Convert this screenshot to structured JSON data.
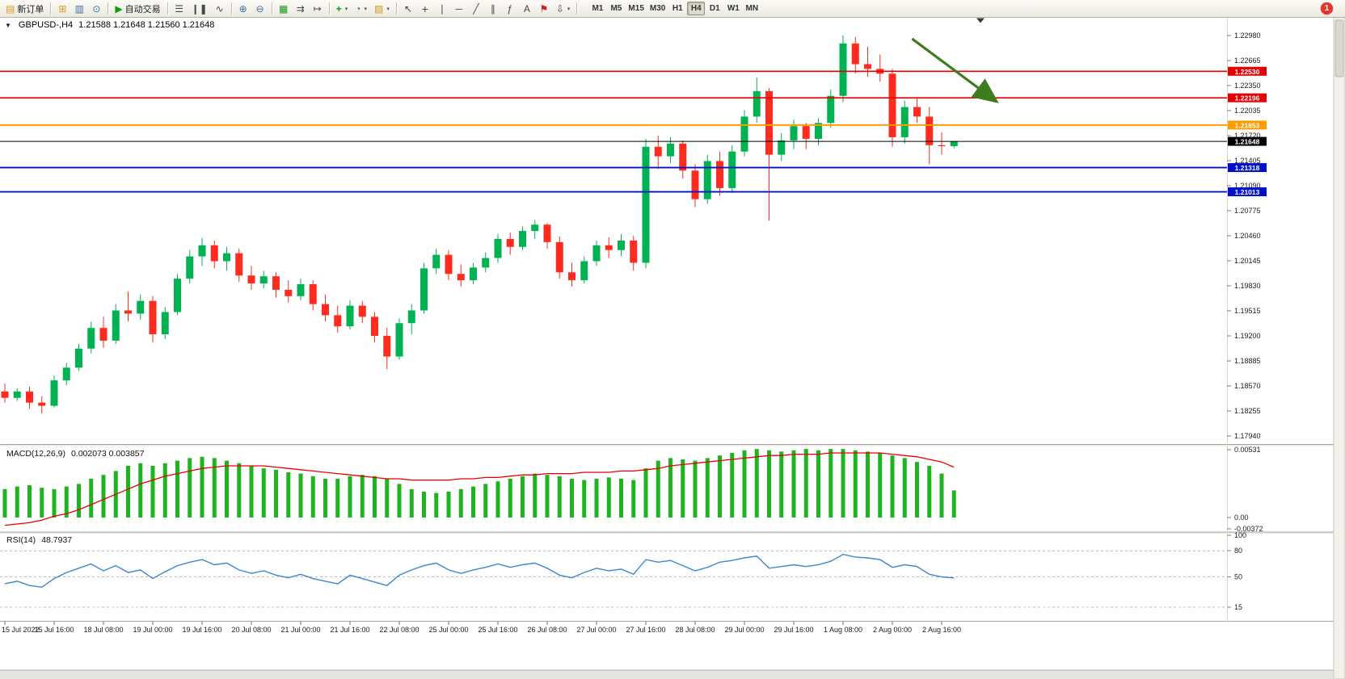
{
  "toolbar": {
    "new_order_label": "新订单",
    "autotrading_label": "自动交易",
    "timeframes": [
      "M1",
      "M5",
      "M15",
      "M30",
      "H1",
      "H4",
      "D1",
      "W1",
      "MN"
    ],
    "active_timeframe": "H4",
    "notification_badge": "1"
  },
  "icons": {
    "new_order": "▤",
    "new_chart": "⊞",
    "profiles": "▥",
    "market_watch": "⊙",
    "autotrading_play": "▶",
    "bars_mode": "☰",
    "candles_mode": "❙❚",
    "line_mode": "∿",
    "zoom_in": "⊕",
    "zoom_out": "⊖",
    "tile_windows": "▦",
    "auto_scroll": "⇉",
    "chart_shift": "↦",
    "indicators": "+",
    "periods": "◔",
    "templates": "▨",
    "cursor": "↖",
    "crosshair": "+",
    "vertical_line": "❘",
    "horizontal_line": "─",
    "trendline": "╱",
    "channel": "∥",
    "fibonacci": "ƒ",
    "text_tool": "A",
    "label_tool": "⚑",
    "arrows_tool": "⇩",
    "dropdown": "▾",
    "collapse": "▼"
  },
  "chart_data": [
    {
      "id": "price",
      "type": "candlestick",
      "title": "GBPUSD-,H4",
      "ohlc_text": "1.21588 1.21648 1.21560 1.21648",
      "up_color": "#00b251",
      "down_color": "#ff2b1e",
      "bid_price": "1.21648",
      "y_ticks": [
        "1.22980",
        "1.22665",
        "1.22350",
        "1.22035",
        "1.21720",
        "1.21405",
        "1.21090",
        "1.20775",
        "1.20460",
        "1.20145",
        "1.19830",
        "1.19515",
        "1.19200",
        "1.18885",
        "1.18570",
        "1.18255",
        "1.17940"
      ],
      "x_labels": [
        "15 Jul 2022",
        "15 Jul 16:00",
        "18 Jul 08:00",
        "19 Jul 00:00",
        "19 Jul 16:00",
        "20 Jul 08:00",
        "21 Jul 00:00",
        "21 Jul 16:00",
        "22 Jul 08:00",
        "25 Jul 00:00",
        "25 Jul 16:00",
        "26 Jul 08:00",
        "27 Jul 00:00",
        "27 Jul 16:00",
        "28 Jul 08:00",
        "29 Jul 00:00",
        "29 Jul 16:00",
        "1 Aug 08:00",
        "2 Aug 00:00",
        "2 Aug 16:00"
      ],
      "label_every": 4,
      "hlines": [
        {
          "price": "1.22530",
          "color": "#e60000",
          "width": 1.6
        },
        {
          "price": "1.22196",
          "color": "#e60000",
          "width": 1.6
        },
        {
          "price": "1.21853",
          "color": "#ff9d00",
          "width": 2
        },
        {
          "price": "1.21648",
          "color": "#000000",
          "width": 1
        },
        {
          "price": "1.21318",
          "color": "#0011cc",
          "width": 1.8
        },
        {
          "price": "1.21013",
          "color": "#0011cc",
          "width": 1.8
        }
      ],
      "arrow_annotation": {
        "start": {
          "bar": 73.6,
          "price": 1.22939
        },
        "end": {
          "bar": 80.3,
          "price": 1.22167
        },
        "color": "#3e7d1f"
      },
      "candles": [
        [
          1.185,
          1.186,
          1.1836,
          1.1842
        ],
        [
          1.1842,
          1.1854,
          1.1838,
          1.185
        ],
        [
          1.185,
          1.1856,
          1.1828,
          1.1836
        ],
        [
          1.1836,
          1.1844,
          1.1822,
          1.1832
        ],
        [
          1.1832,
          1.187,
          1.183,
          1.1864
        ],
        [
          1.1864,
          1.1886,
          1.1858,
          1.188
        ],
        [
          1.188,
          1.191,
          1.1876,
          1.1904
        ],
        [
          1.1904,
          1.1938,
          1.1898,
          1.193
        ],
        [
          1.193,
          1.1944,
          1.1905,
          1.1914
        ],
        [
          1.1914,
          1.196,
          1.191,
          1.1952
        ],
        [
          1.1952,
          1.1976,
          1.1938,
          1.1948
        ],
        [
          1.1948,
          1.1972,
          1.194,
          1.1964
        ],
        [
          1.1964,
          1.197,
          1.1912,
          1.1922
        ],
        [
          1.1922,
          1.1956,
          1.1916,
          1.195
        ],
        [
          1.195,
          1.1998,
          1.1946,
          1.1992
        ],
        [
          1.1992,
          1.2028,
          1.1986,
          1.202
        ],
        [
          1.202,
          1.2043,
          1.2008,
          1.2034
        ],
        [
          1.2034,
          1.204,
          1.2005,
          1.2014
        ],
        [
          1.2014,
          1.2032,
          1.2002,
          1.2024
        ],
        [
          1.2024,
          1.203,
          1.1988,
          1.1996
        ],
        [
          1.1996,
          1.2008,
          1.1978,
          1.1986
        ],
        [
          1.1986,
          1.2002,
          1.198,
          1.1995
        ],
        [
          1.1995,
          1.2,
          1.1968,
          1.1978
        ],
        [
          1.1978,
          1.199,
          1.1962,
          1.197
        ],
        [
          1.197,
          1.1992,
          1.1965,
          1.1985
        ],
        [
          1.1985,
          1.199,
          1.1952,
          1.196
        ],
        [
          1.196,
          1.1972,
          1.1938,
          1.1946
        ],
        [
          1.1946,
          1.1958,
          1.1924,
          1.1932
        ],
        [
          1.1932,
          1.1965,
          1.1928,
          1.1958
        ],
        [
          1.1958,
          1.1964,
          1.1936,
          1.1944
        ],
        [
          1.1944,
          1.195,
          1.1912,
          1.192
        ],
        [
          1.192,
          1.193,
          1.1878,
          1.1894
        ],
        [
          1.1894,
          1.1942,
          1.189,
          1.1936
        ],
        [
          1.1936,
          1.196,
          1.1922,
          1.1952
        ],
        [
          1.1952,
          1.2012,
          1.1948,
          1.2005
        ],
        [
          1.2005,
          1.203,
          1.1998,
          1.2022
        ],
        [
          1.2022,
          1.2028,
          1.199,
          1.1998
        ],
        [
          1.1998,
          1.201,
          1.1982,
          1.199
        ],
        [
          1.199,
          1.2012,
          1.1985,
          1.2006
        ],
        [
          1.2006,
          1.2025,
          1.2,
          1.2018
        ],
        [
          1.2018,
          1.2048,
          1.2012,
          1.2042
        ],
        [
          1.2042,
          1.205,
          1.2022,
          1.2032
        ],
        [
          1.2032,
          1.2058,
          1.2028,
          1.2052
        ],
        [
          1.2052,
          1.2066,
          1.2042,
          1.206
        ],
        [
          1.206,
          1.2062,
          1.203,
          1.2038
        ],
        [
          1.2038,
          1.2045,
          1.1992,
          1.2
        ],
        [
          1.2,
          1.2012,
          1.1982,
          1.199
        ],
        [
          1.199,
          1.202,
          1.1986,
          1.2014
        ],
        [
          1.2014,
          1.204,
          1.2008,
          1.2034
        ],
        [
          1.2034,
          1.2044,
          1.2018,
          1.2028
        ],
        [
          1.2028,
          1.2048,
          1.202,
          1.204
        ],
        [
          1.204,
          1.2046,
          1.2002,
          1.2012
        ],
        [
          1.2012,
          1.2168,
          1.2005,
          1.2158
        ],
        [
          1.2158,
          1.2172,
          1.213,
          1.2146
        ],
        [
          1.2146,
          1.217,
          1.2138,
          1.2162
        ],
        [
          1.2162,
          1.2166,
          1.2118,
          1.2128
        ],
        [
          1.2128,
          1.2136,
          1.2082,
          1.2092
        ],
        [
          1.2092,
          1.2148,
          1.2086,
          1.214
        ],
        [
          1.214,
          1.2152,
          1.2096,
          1.2106
        ],
        [
          1.2106,
          1.216,
          1.21,
          1.2152
        ],
        [
          1.2152,
          1.2204,
          1.2146,
          1.2196
        ],
        [
          1.2196,
          1.2245,
          1.2188,
          1.2228
        ],
        [
          1.2228,
          1.2232,
          1.2065,
          1.2148
        ],
        [
          1.2148,
          1.2175,
          1.214,
          1.2166
        ],
        [
          1.2166,
          1.2192,
          1.2155,
          1.2184
        ],
        [
          1.2184,
          1.2188,
          1.2155,
          1.2168
        ],
        [
          1.2168,
          1.2194,
          1.216,
          1.2188
        ],
        [
          1.2188,
          1.223,
          1.2182,
          1.2222
        ],
        [
          1.2222,
          1.2298,
          1.2214,
          1.2288
        ],
        [
          1.2288,
          1.2296,
          1.225,
          1.2262
        ],
        [
          1.2262,
          1.2284,
          1.2246,
          1.2256
        ],
        [
          1.2256,
          1.2274,
          1.224,
          1.225
        ],
        [
          1.225,
          1.2256,
          1.2158,
          1.217
        ],
        [
          1.217,
          1.2216,
          1.2162,
          1.2208
        ],
        [
          1.2208,
          1.222,
          1.2188,
          1.2196
        ],
        [
          1.2196,
          1.2208,
          1.2136,
          1.216
        ],
        [
          1.216,
          1.2176,
          1.2148,
          1.21588
        ],
        [
          1.21588,
          1.21648,
          1.2156,
          1.21648
        ]
      ]
    },
    {
      "id": "macd",
      "type": "bar",
      "label": "MACD(12,26,9)",
      "values_text": "0.002073 0.003857",
      "y_ticks": [
        "0.00531",
        "0.00",
        "-0.00372"
      ],
      "histogram_color": "#1db41d",
      "signal_color": "#e80000",
      "histogram": [
        0.0022,
        0.0024,
        0.0025,
        0.0023,
        0.0022,
        0.0024,
        0.0026,
        0.003,
        0.0033,
        0.0036,
        0.004,
        0.0042,
        0.004,
        0.0042,
        0.0044,
        0.0046,
        0.0047,
        0.0046,
        0.0044,
        0.0042,
        0.004,
        0.0038,
        0.0037,
        0.0035,
        0.0034,
        0.0032,
        0.003,
        0.003,
        0.0032,
        0.0033,
        0.0032,
        0.003,
        0.0026,
        0.0022,
        0.002,
        0.0019,
        0.002,
        0.0022,
        0.0024,
        0.0026,
        0.0028,
        0.003,
        0.0032,
        0.0034,
        0.0033,
        0.0032,
        0.003,
        0.0029,
        0.003,
        0.0031,
        0.003,
        0.0029,
        0.0038,
        0.0044,
        0.0046,
        0.0045,
        0.0044,
        0.0046,
        0.0048,
        0.005,
        0.0052,
        0.0053,
        0.0052,
        0.0051,
        0.0052,
        0.0053,
        0.0052,
        0.0053,
        0.0053,
        0.0052,
        0.0051,
        0.005,
        0.0048,
        0.0046,
        0.0043,
        0.004,
        0.0034,
        0.0021
      ],
      "signal": [
        -0.0006,
        -0.0005,
        -0.0004,
        -0.0002,
        0.0001,
        0.0003,
        0.0006,
        0.001,
        0.0014,
        0.0018,
        0.0022,
        0.0026,
        0.0029,
        0.0032,
        0.0034,
        0.0036,
        0.0038,
        0.0039,
        0.004,
        0.004,
        0.004,
        0.004,
        0.0039,
        0.0038,
        0.0037,
        0.0036,
        0.0035,
        0.0034,
        0.0033,
        0.0032,
        0.0031,
        0.003,
        0.003,
        0.0029,
        0.0029,
        0.0029,
        0.0029,
        0.003,
        0.003,
        0.0031,
        0.0031,
        0.0032,
        0.0033,
        0.0033,
        0.0034,
        0.0034,
        0.0034,
        0.0035,
        0.0035,
        0.0035,
        0.0036,
        0.0036,
        0.0037,
        0.0038,
        0.004,
        0.0041,
        0.0042,
        0.0043,
        0.0044,
        0.0045,
        0.0046,
        0.0047,
        0.0048,
        0.0048,
        0.0049,
        0.0049,
        0.0049,
        0.005,
        0.005,
        0.005,
        0.005,
        0.005,
        0.0049,
        0.0048,
        0.0047,
        0.0045,
        0.0043,
        0.0039
      ]
    },
    {
      "id": "rsi",
      "type": "line",
      "label": "RSI(14)",
      "value_text": "48.7937",
      "y_ticks": [
        "100",
        "80",
        "50",
        "15"
      ],
      "levels": [
        80,
        50,
        15
      ],
      "line_color": "#3b87d0",
      "values": [
        42,
        45,
        40,
        38,
        48,
        55,
        60,
        65,
        57,
        63,
        55,
        58,
        48,
        56,
        63,
        67,
        70,
        64,
        66,
        58,
        54,
        57,
        52,
        49,
        53,
        48,
        45,
        42,
        52,
        48,
        44,
        40,
        52,
        58,
        63,
        66,
        58,
        54,
        58,
        61,
        65,
        61,
        64,
        66,
        60,
        52,
        49,
        55,
        60,
        57,
        59,
        53,
        70,
        67,
        69,
        63,
        57,
        61,
        67,
        69,
        72,
        74,
        60,
        62,
        64,
        62,
        64,
        68,
        76,
        73,
        72,
        70,
        61,
        64,
        62,
        53,
        50,
        48.79
      ]
    }
  ]
}
